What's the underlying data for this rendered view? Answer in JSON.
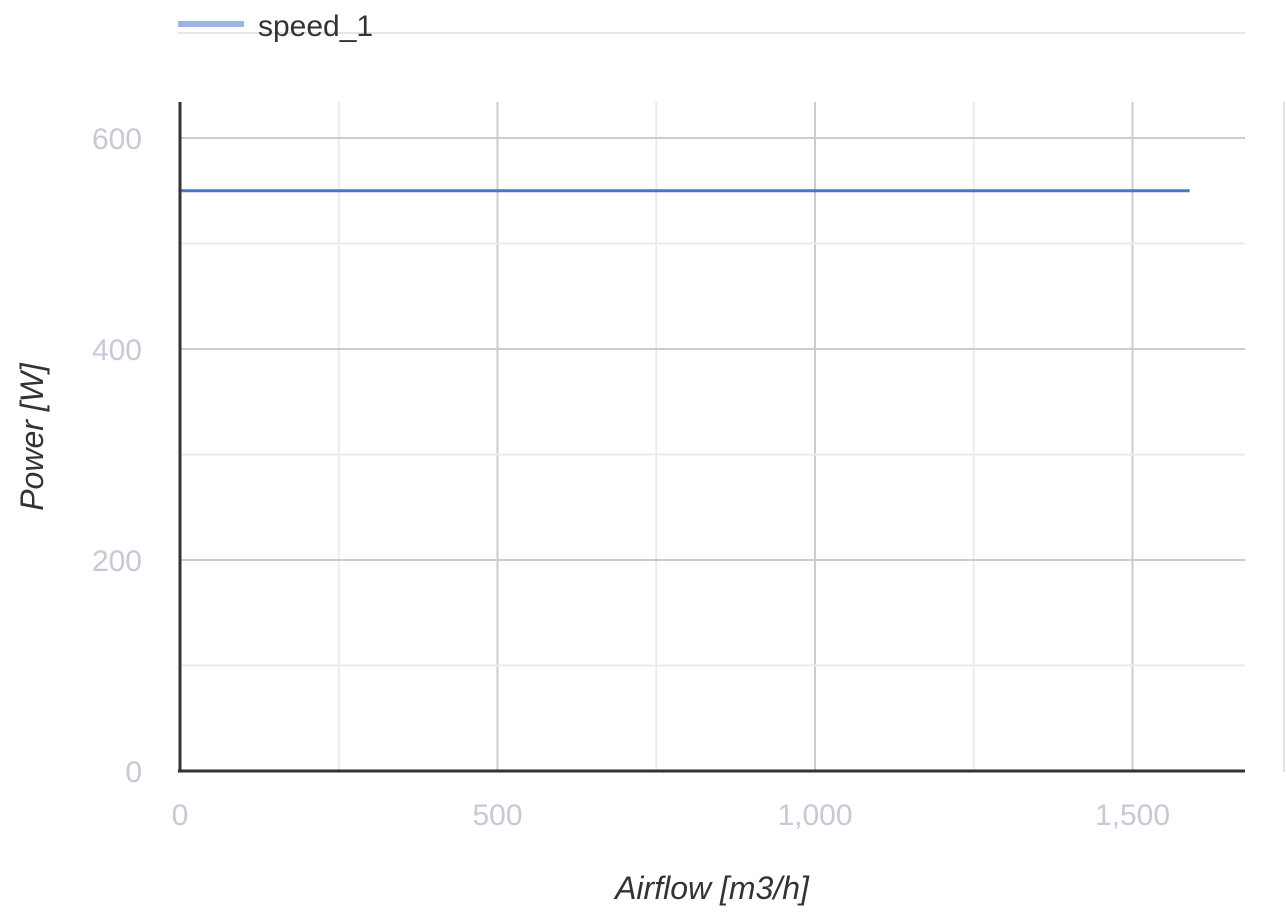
{
  "chart_data": {
    "type": "line",
    "title": "",
    "xlabel": "Airflow [m3/h]",
    "ylabel": "Power [W]",
    "xlim": [
      0,
      1680
    ],
    "ylim": [
      0,
      600
    ],
    "x_ticks": [
      0,
      500,
      1000,
      1500
    ],
    "x_tick_labels": [
      "0",
      "500",
      "1,000",
      "1,500"
    ],
    "x_minor_ticks": [
      250,
      750,
      1250
    ],
    "y_ticks": [
      0,
      200,
      400,
      600
    ],
    "y_tick_labels": [
      "0",
      "200",
      "400",
      "600"
    ],
    "y_minor_ticks": [
      100,
      300,
      500
    ],
    "grid": true,
    "legend": "top-left",
    "series": [
      {
        "name": "speed_1",
        "color": "#4a74c9",
        "legend_color": "#9db3e6",
        "x": [
          0,
          1590
        ],
        "y": [
          550,
          550
        ]
      }
    ]
  }
}
